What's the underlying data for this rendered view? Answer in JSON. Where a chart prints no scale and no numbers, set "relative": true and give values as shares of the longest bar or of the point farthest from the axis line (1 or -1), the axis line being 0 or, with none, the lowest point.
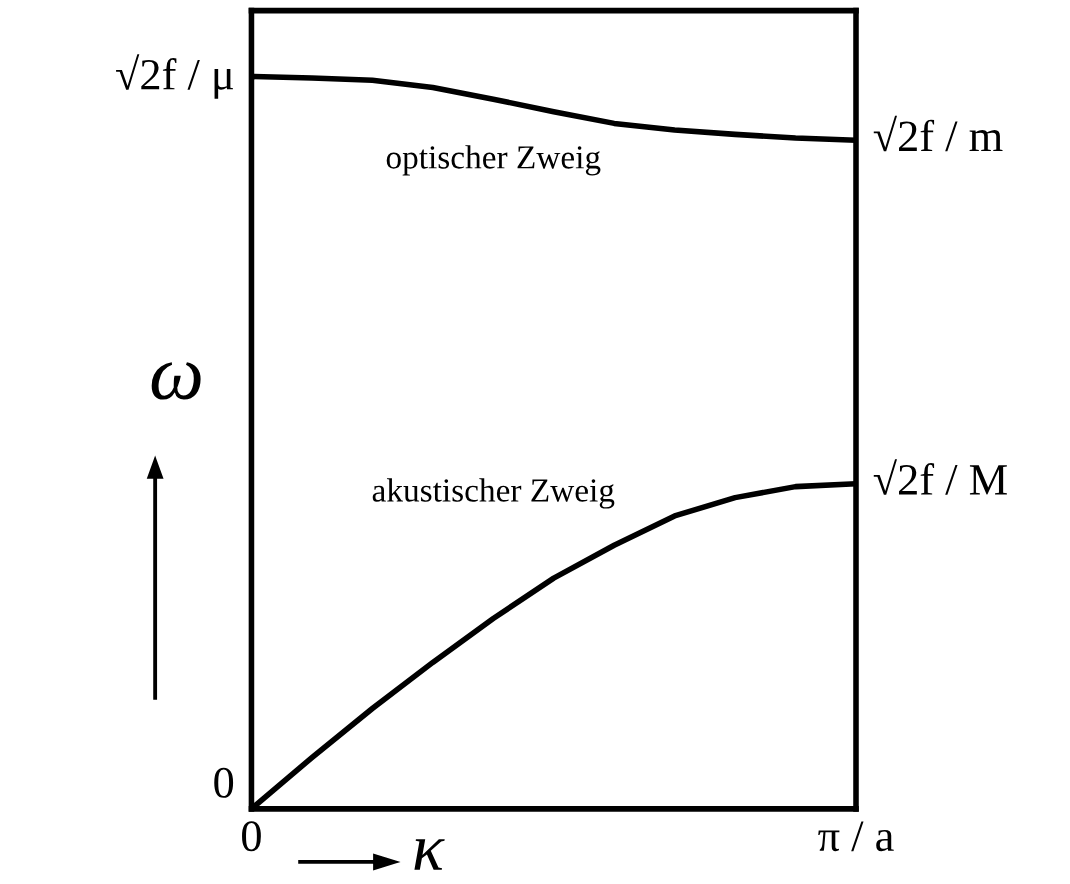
{
  "chart_data": {
    "type": "line",
    "relative": true,
    "xlabel": "κ",
    "ylabel": "ω",
    "categories": [
      null,
      null,
      null,
      null,
      null,
      null,
      null,
      null,
      null,
      null,
      null
    ],
    "series": [
      {
        "name": "optischer Zweig",
        "color": "#000000",
        "values": [
          1.0,
          0.998,
          0.995,
          0.985,
          0.969,
          0.952,
          0.936,
          0.927,
          0.921,
          0.916,
          0.913
        ]
      },
      {
        "name": "akustischer Zweig",
        "color": "#000000",
        "values": [
          0,
          0.07,
          0.137,
          0.2,
          0.26,
          0.315,
          0.36,
          0.4,
          0.425,
          0.44,
          0.444
        ]
      }
    ],
    "annotations": [
      "0",
      "√2f / μ",
      "√2f / m",
      "√2f / M",
      "0",
      "π / a"
    ],
    "grid": false,
    "legend": false,
    "marker": "none",
    "line_style": "solid"
  }
}
